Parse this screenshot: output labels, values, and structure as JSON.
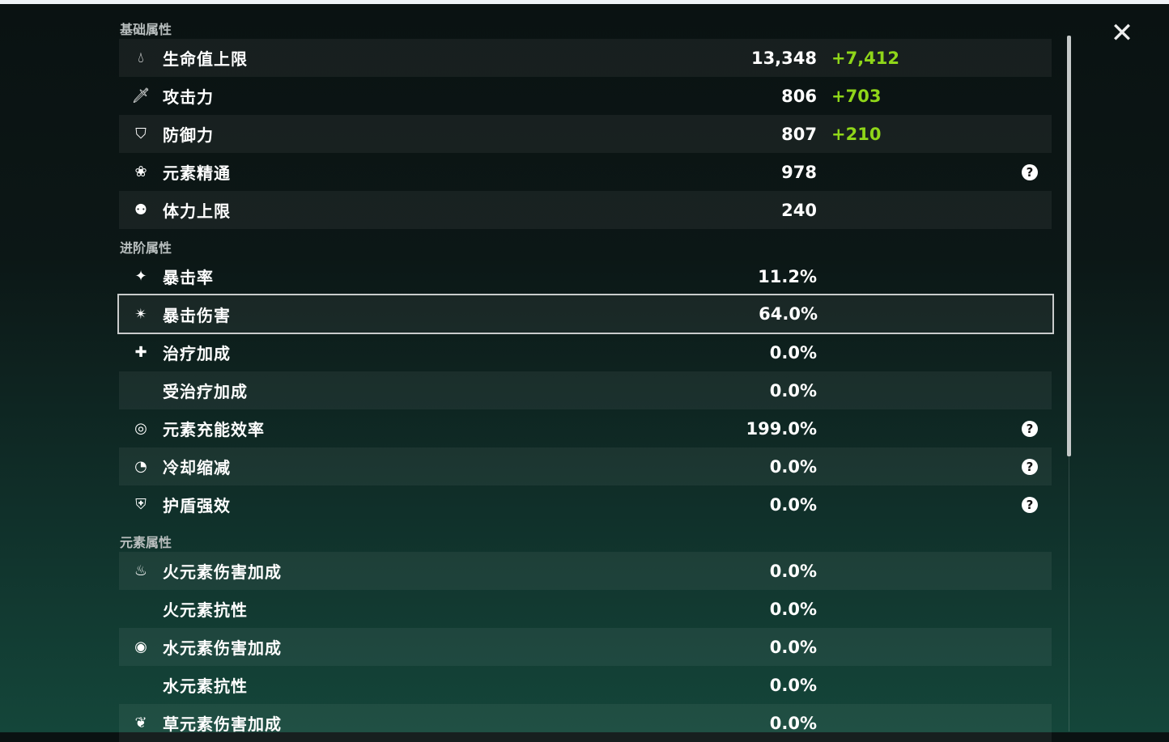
{
  "sections": {
    "basic": "基础属性",
    "advanced": "进阶属性",
    "elemental": "元素属性"
  },
  "basic": [
    {
      "icon": "hp-drop-icon",
      "label": "生命值上限",
      "value": "13,348",
      "bonus": "+7,412"
    },
    {
      "icon": "sword-icon",
      "label": "攻击力",
      "value": "806",
      "bonus": "+703"
    },
    {
      "icon": "shield-icon",
      "label": "防御力",
      "value": "807",
      "bonus": "+210"
    },
    {
      "icon": "elemental-mastery-icon",
      "label": "元素精通",
      "value": "978",
      "help": "?"
    },
    {
      "icon": "stamina-icon",
      "label": "体力上限",
      "value": "240"
    }
  ],
  "advanced": [
    {
      "icon": "crit-rate-icon",
      "label": "暴击率",
      "value": "11.2%"
    },
    {
      "icon": "crit-dmg-icon",
      "label": "暴击伤害",
      "value": "64.0%",
      "selected": true
    },
    {
      "icon": "healing-cross-icon",
      "label": "治疗加成",
      "value": "0.0%"
    },
    {
      "icon": "",
      "label": "受治疗加成",
      "value": "0.0%"
    },
    {
      "icon": "energy-recharge-icon",
      "label": "元素充能效率",
      "value": "199.0%",
      "help": "?"
    },
    {
      "icon": "cooldown-icon",
      "label": "冷却缩减",
      "value": "0.0%",
      "help": "?"
    },
    {
      "icon": "shield-strength-icon",
      "label": "护盾强效",
      "value": "0.0%",
      "help": "?"
    }
  ],
  "elemental": [
    {
      "icon": "pyro-icon",
      "label": "火元素伤害加成",
      "value": "0.0%"
    },
    {
      "icon": "",
      "label": "火元素抗性",
      "value": "0.0%"
    },
    {
      "icon": "hydro-icon",
      "label": "水元素伤害加成",
      "value": "0.0%"
    },
    {
      "icon": "",
      "label": "水元素抗性",
      "value": "0.0%"
    },
    {
      "icon": "dendro-icon",
      "label": "草元素伤害加成",
      "value": "0.0%"
    }
  ],
  "colors": {
    "bonus": "#8fd619",
    "selected_border": "#c9cccc"
  },
  "close_icon": "close-icon"
}
